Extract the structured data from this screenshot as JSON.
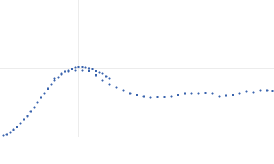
{
  "chart_data": {
    "type": "scatter",
    "xlim": [
      0,
      0.4
    ],
    "ylim": [
      0,
      0.2
    ],
    "xticks": [
      0.115
    ],
    "yticks": [
      0.1
    ],
    "grid": true,
    "series": [
      {
        "color": "#3a64ad",
        "x": [
          0.005,
          0.01,
          0.015,
          0.02,
          0.025,
          0.03,
          0.035,
          0.04,
          0.045,
          0.05,
          0.055,
          0.06,
          0.065,
          0.07,
          0.075,
          0.08,
          0.085,
          0.09,
          0.095,
          0.1,
          0.105,
          0.11,
          0.115,
          0.12,
          0.125,
          0.13,
          0.135,
          0.14,
          0.145,
          0.15,
          0.155,
          0.16
        ],
        "values": [
          0.002,
          0.003,
          0.006,
          0.01,
          0.014,
          0.019,
          0.025,
          0.03,
          0.037,
          0.043,
          0.05,
          0.057,
          0.063,
          0.07,
          0.076,
          0.082,
          0.087,
          0.091,
          0.095,
          0.097,
          0.099,
          0.101,
          0.102,
          0.102,
          0.101,
          0.1,
          0.099,
          0.096,
          0.094,
          0.092,
          0.088,
          0.085
        ]
      },
      {
        "color": "#3a64ad",
        "x": [
          0.08,
          0.09,
          0.1,
          0.11,
          0.12,
          0.13,
          0.14,
          0.15,
          0.16,
          0.17,
          0.18,
          0.19,
          0.2,
          0.21,
          0.22,
          0.23,
          0.24,
          0.25,
          0.26,
          0.27,
          0.28,
          0.29,
          0.3,
          0.31,
          0.32,
          0.33,
          0.34,
          0.35,
          0.36,
          0.37,
          0.38,
          0.39,
          0.398
        ],
        "values": [
          0.085,
          0.092,
          0.095,
          0.097,
          0.097,
          0.096,
          0.09,
          0.082,
          0.076,
          0.072,
          0.068,
          0.063,
          0.061,
          0.059,
          0.057,
          0.058,
          0.058,
          0.059,
          0.061,
          0.063,
          0.063,
          0.063,
          0.064,
          0.063,
          0.059,
          0.06,
          0.061,
          0.063,
          0.066,
          0.065,
          0.068,
          0.068,
          0.067
        ]
      }
    ]
  }
}
